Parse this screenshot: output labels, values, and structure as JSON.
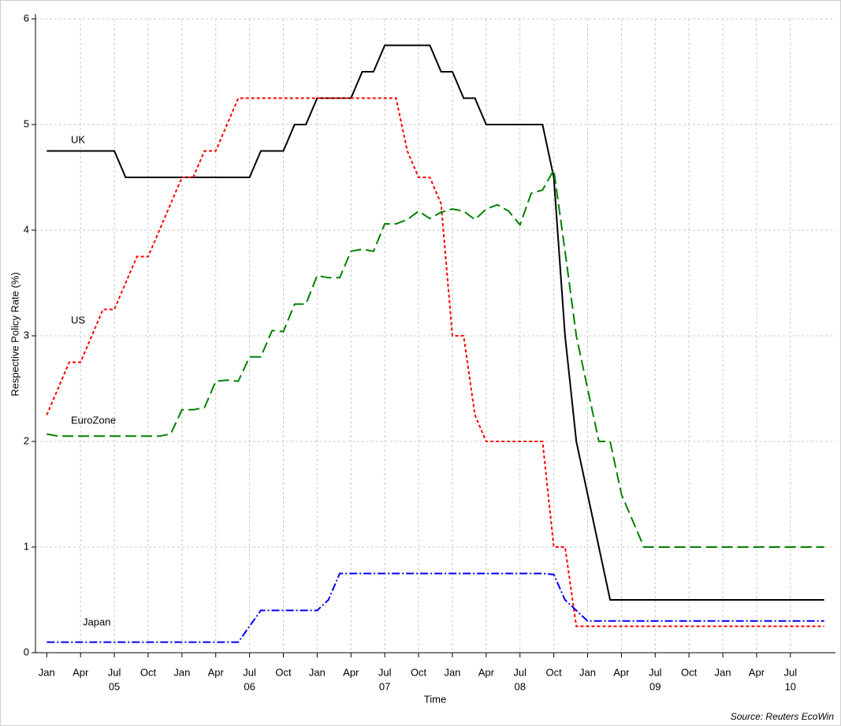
{
  "chart_data": {
    "type": "line",
    "y_label": "Respective Policy Rate (%)",
    "x_label": "Time",
    "source": "Source: Reuters EcoWin",
    "x": [
      "2005-01",
      "2005-02",
      "2005-03",
      "2005-04",
      "2005-05",
      "2005-06",
      "2005-07",
      "2005-08",
      "2005-09",
      "2005-10",
      "2005-11",
      "2005-12",
      "2006-01",
      "2006-02",
      "2006-03",
      "2006-04",
      "2006-05",
      "2006-06",
      "2006-07",
      "2006-08",
      "2006-09",
      "2006-10",
      "2006-11",
      "2006-12",
      "2007-01",
      "2007-02",
      "2007-03",
      "2007-04",
      "2007-05",
      "2007-06",
      "2007-07",
      "2007-08",
      "2007-09",
      "2007-10",
      "2007-11",
      "2007-12",
      "2008-01",
      "2008-02",
      "2008-03",
      "2008-04",
      "2008-05",
      "2008-06",
      "2008-07",
      "2008-08",
      "2008-09",
      "2008-10",
      "2008-11",
      "2008-12",
      "2009-01",
      "2009-02",
      "2009-03",
      "2009-04",
      "2009-05",
      "2009-06",
      "2009-07",
      "2009-08",
      "2009-09",
      "2009-10",
      "2009-11",
      "2009-12",
      "2010-01",
      "2010-02",
      "2010-03",
      "2010-04",
      "2010-05",
      "2010-06",
      "2010-07",
      "2010-08",
      "2010-09",
      "2010-10"
    ],
    "series": [
      {
        "name": "UK",
        "color": "#000000",
        "dash": "none",
        "values": [
          4.75,
          4.75,
          4.75,
          4.75,
          4.75,
          4.75,
          4.75,
          4.5,
          4.5,
          4.5,
          4.5,
          4.5,
          4.5,
          4.5,
          4.5,
          4.5,
          4.5,
          4.5,
          4.5,
          4.75,
          4.75,
          4.75,
          5.0,
          5.0,
          5.25,
          5.25,
          5.25,
          5.25,
          5.5,
          5.5,
          5.75,
          5.75,
          5.75,
          5.75,
          5.75,
          5.5,
          5.5,
          5.25,
          5.25,
          5.0,
          5.0,
          5.0,
          5.0,
          5.0,
          5.0,
          4.5,
          3.0,
          2.0,
          1.5,
          1.0,
          0.5,
          0.5,
          0.5,
          0.5,
          0.5,
          0.5,
          0.5,
          0.5,
          0.5,
          0.5,
          0.5,
          0.5,
          0.5,
          0.5,
          0.5,
          0.5,
          0.5,
          0.5,
          0.5,
          0.5
        ]
      },
      {
        "name": "US",
        "color": "#ff0000",
        "dash": "4 3",
        "values": [
          2.25,
          2.5,
          2.75,
          2.75,
          3.0,
          3.25,
          3.25,
          3.5,
          3.75,
          3.75,
          4.0,
          4.25,
          4.5,
          4.5,
          4.75,
          4.75,
          5.0,
          5.25,
          5.25,
          5.25,
          5.25,
          5.25,
          5.25,
          5.25,
          5.25,
          5.25,
          5.25,
          5.25,
          5.25,
          5.25,
          5.25,
          5.25,
          4.75,
          4.5,
          4.5,
          4.25,
          3.0,
          3.0,
          2.25,
          2.0,
          2.0,
          2.0,
          2.0,
          2.0,
          2.0,
          1.0,
          1.0,
          0.25,
          0.25,
          0.25,
          0.25,
          0.25,
          0.25,
          0.25,
          0.25,
          0.25,
          0.25,
          0.25,
          0.25,
          0.25,
          0.25,
          0.25,
          0.25,
          0.25,
          0.25,
          0.25,
          0.25,
          0.25,
          0.25,
          0.25
        ]
      },
      {
        "name": "EuroZone",
        "color": "#008000",
        "dash": "14 6",
        "values": [
          2.07,
          2.05,
          2.05,
          2.05,
          2.05,
          2.05,
          2.05,
          2.05,
          2.05,
          2.05,
          2.05,
          2.07,
          2.3,
          2.3,
          2.32,
          2.57,
          2.58,
          2.57,
          2.8,
          2.8,
          3.05,
          3.04,
          3.3,
          3.3,
          3.57,
          3.55,
          3.55,
          3.8,
          3.82,
          3.8,
          4.06,
          4.06,
          4.1,
          4.18,
          4.11,
          4.17,
          4.2,
          4.18,
          4.1,
          4.2,
          4.24,
          4.18,
          4.05,
          4.35,
          4.38,
          4.57,
          3.8,
          3.0,
          2.5,
          2.0,
          2.0,
          1.5,
          1.25,
          1.0,
          1.0,
          1.0,
          1.0,
          1.0,
          1.0,
          1.0,
          1.0,
          1.0,
          1.0,
          1.0,
          1.0,
          1.0,
          1.0,
          1.0,
          1.0,
          1.0
        ]
      },
      {
        "name": "Japan",
        "color": "#0000ff",
        "dash": "10 3 2 3",
        "values": [
          0.1,
          0.1,
          0.1,
          0.1,
          0.1,
          0.1,
          0.1,
          0.1,
          0.1,
          0.1,
          0.1,
          0.1,
          0.1,
          0.1,
          0.1,
          0.1,
          0.1,
          0.1,
          0.25,
          0.4,
          0.4,
          0.4,
          0.4,
          0.4,
          0.4,
          0.5,
          0.75,
          0.75,
          0.75,
          0.75,
          0.75,
          0.75,
          0.75,
          0.75,
          0.75,
          0.75,
          0.75,
          0.75,
          0.75,
          0.75,
          0.75,
          0.75,
          0.75,
          0.75,
          0.75,
          0.74,
          0.5,
          0.4,
          0.3,
          0.3,
          0.3,
          0.3,
          0.3,
          0.3,
          0.3,
          0.3,
          0.3,
          0.3,
          0.3,
          0.3,
          0.3,
          0.3,
          0.3,
          0.3,
          0.3,
          0.3,
          0.3,
          0.3,
          0.3,
          0.3
        ]
      }
    ],
    "xlim": [
      "2004-12",
      "2010-11"
    ],
    "xticks": [
      {
        "value": "2005-01",
        "label": "Jan"
      },
      {
        "value": "2005-04",
        "label": "Apr"
      },
      {
        "value": "2005-07",
        "label": "Jul"
      },
      {
        "value": "2005-10",
        "label": "Oct"
      },
      {
        "value": "2006-01",
        "label": "Jan"
      },
      {
        "value": "2006-04",
        "label": "Apr"
      },
      {
        "value": "2006-07",
        "label": "Jul"
      },
      {
        "value": "2006-10",
        "label": "Oct"
      },
      {
        "value": "2007-01",
        "label": "Jan"
      },
      {
        "value": "2007-04",
        "label": "Apr"
      },
      {
        "value": "2007-07",
        "label": "Jul"
      },
      {
        "value": "2007-10",
        "label": "Oct"
      },
      {
        "value": "2008-01",
        "label": "Jan"
      },
      {
        "value": "2008-04",
        "label": "Apr"
      },
      {
        "value": "2008-07",
        "label": "Jul"
      },
      {
        "value": "2008-10",
        "label": "Oct"
      },
      {
        "value": "2009-01",
        "label": "Jan"
      },
      {
        "value": "2009-04",
        "label": "Apr"
      },
      {
        "value": "2009-07",
        "label": "Jul"
      },
      {
        "value": "2009-10",
        "label": "Oct"
      },
      {
        "value": "2010-01",
        "label": "Jan"
      },
      {
        "value": "2010-04",
        "label": "Apr"
      },
      {
        "value": "2010-07",
        "label": "Jul"
      }
    ],
    "xticks_year": [
      {
        "value": "2005-07",
        "label": "05"
      },
      {
        "value": "2006-07",
        "label": "06"
      },
      {
        "value": "2007-07",
        "label": "07"
      },
      {
        "value": "2008-07",
        "label": "08"
      },
      {
        "value": "2009-07",
        "label": "09"
      },
      {
        "value": "2010-07",
        "label": "10"
      }
    ],
    "ylim": [
      0,
      6
    ],
    "yticks": [
      0,
      1,
      2,
      3,
      4,
      5,
      6
    ],
    "grid": true
  }
}
